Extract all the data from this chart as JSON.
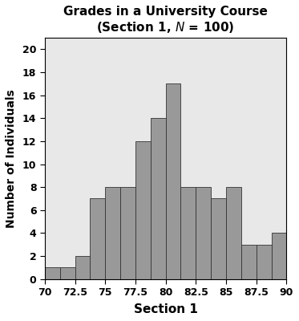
{
  "title_line1": "Grades in a University Course",
  "xlabel": "Section 1",
  "ylabel": "Number of Individuals",
  "bar_left_edges": [
    70.0,
    71.25,
    72.5,
    73.75,
    75.0,
    76.25,
    77.5,
    78.75,
    80.0,
    81.25,
    82.5,
    83.75,
    85.0,
    86.25,
    87.5,
    88.75
  ],
  "bar_heights": [
    1,
    1,
    2,
    7,
    8,
    8,
    12,
    14,
    17,
    8,
    8,
    7,
    8,
    3,
    3,
    4
  ],
  "bar_width": 1.25,
  "bar_color": "#999999",
  "bar_edge_color": "#333333",
  "bar_edge_linewidth": 0.6,
  "background_color": "#e8e8e8",
  "figure_background": "#ffffff",
  "ylim": [
    0,
    21
  ],
  "yticks": [
    0,
    2,
    4,
    6,
    8,
    10,
    12,
    14,
    16,
    18,
    20
  ],
  "xticks": [
    70,
    72.5,
    75,
    77.5,
    80,
    82.5,
    85,
    87.5,
    90
  ],
  "xlim": [
    70,
    90
  ],
  "tick_fontsize": 9,
  "label_fontsize": 11,
  "ylabel_fontsize": 10,
  "title_fontsize": 11
}
